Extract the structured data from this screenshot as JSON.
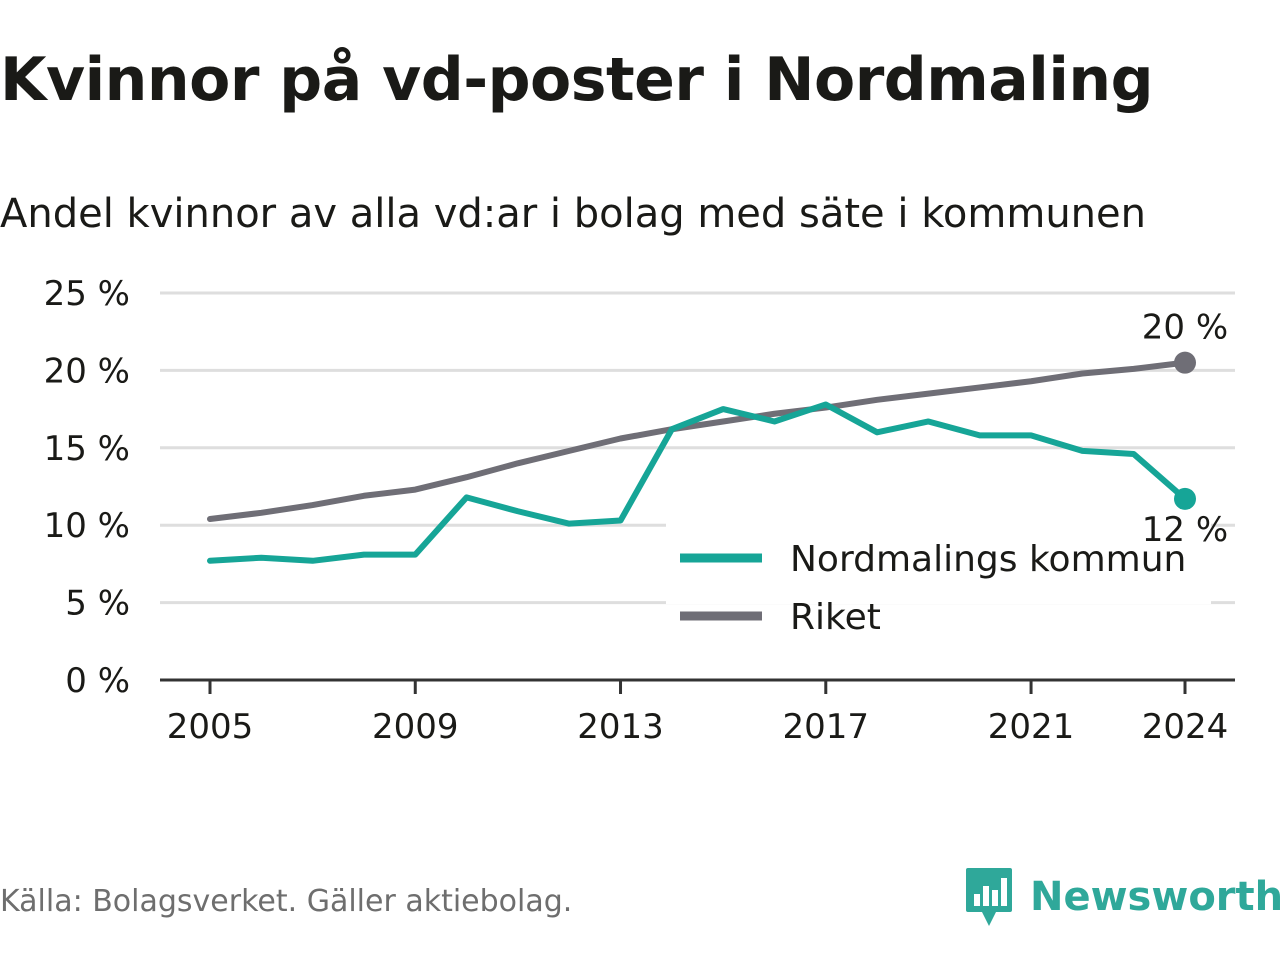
{
  "title": "Kvinnor på vd-poster i Nordmaling",
  "subtitle": "Andel kvinnor av alla vd:ar i bolag med säte i kommunen",
  "source": "Källa: Bolagsverket. Gäller aktiebolag.",
  "logo": {
    "name": "Newsworthy",
    "icon": "newsworthy-chart-icon",
    "color": "#2fa89a"
  },
  "chart_data": {
    "type": "line",
    "x": [
      2005,
      2006,
      2007,
      2008,
      2009,
      2010,
      2011,
      2012,
      2013,
      2014,
      2015,
      2016,
      2017,
      2018,
      2019,
      2020,
      2021,
      2022,
      2023,
      2024
    ],
    "series": [
      {
        "name": "Nordmalings kommun",
        "color": "#16a597",
        "values": [
          7.7,
          7.9,
          7.7,
          8.1,
          8.1,
          11.8,
          10.9,
          10.1,
          10.3,
          16.2,
          17.5,
          16.7,
          17.8,
          16.0,
          16.7,
          15.8,
          15.8,
          14.8,
          14.6,
          11.7
        ],
        "end_label": "12 %"
      },
      {
        "name": "Riket",
        "color": "#6f6e76",
        "values": [
          10.4,
          10.8,
          11.3,
          11.9,
          12.3,
          13.1,
          14.0,
          14.8,
          15.6,
          16.2,
          16.7,
          17.2,
          17.6,
          18.1,
          18.5,
          18.9,
          19.3,
          19.8,
          20.1,
          20.5
        ],
        "end_label": "20 %"
      }
    ],
    "x_ticks": [
      "2005",
      "2009",
      "2013",
      "2017",
      "2021",
      "2024"
    ],
    "y_ticks": [
      "0 %",
      "5 %",
      "10 %",
      "15 %",
      "20 %",
      "25 %"
    ],
    "ylim": [
      0,
      25
    ],
    "xlim": [
      2005,
      2024
    ],
    "grid": true,
    "legend_position": "bottom-right",
    "gridline_color": "#dedede",
    "axis_color": "#333333"
  }
}
